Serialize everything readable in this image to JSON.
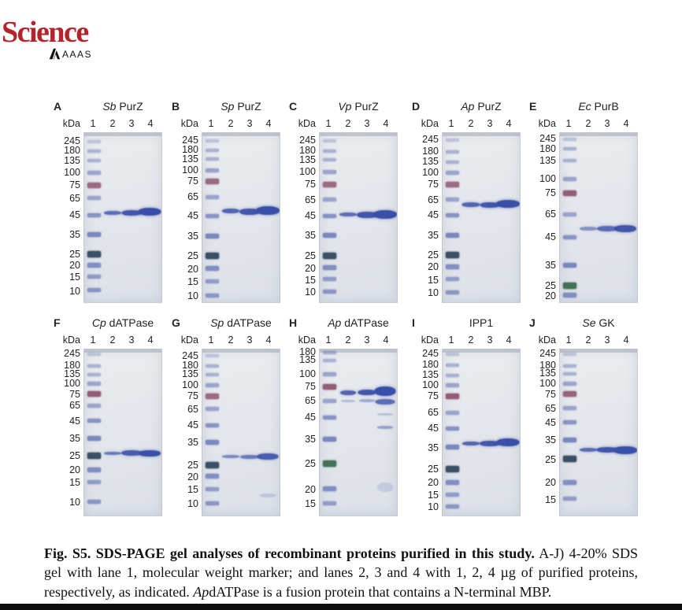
{
  "logo": {
    "title": "Science",
    "subtitle": "AAAS"
  },
  "kda_label": "kDa",
  "lane_numbers": [
    "1",
    "2",
    "3",
    "4"
  ],
  "caption": {
    "bold": "Fig. S5. SDS-PAGE gel analyses of recombinant proteins purified in this study.",
    "normal_1": " A-J) 4-20% SDS gel with lane 1, molecular weight marker; and lanes 2, 3 and 4 with 1, 2, 4 µg of purified proteins, respectively, as indicated. ",
    "italic": "Ap",
    "normal_2": "dATPase is a fusion protein that contains a N-terminal MBP."
  },
  "colors": {
    "science_red": "#b5232b",
    "gel_top": "#eaecef",
    "gel_bottom": "#dde1e8",
    "marker_blue": "#5e6fb2",
    "marker_maroon": "#8f5671",
    "marker_dark": "#33485e",
    "marker_green": "#3c6b52",
    "band_blue": "#3a4fa8",
    "text": "#1a1a1a"
  },
  "panels": [
    {
      "letter": "A",
      "title_italic": "Sb",
      "title": "PurZ",
      "row": 0,
      "col": 0,
      "ladder": [
        {
          "k": "245",
          "y": 5
        },
        {
          "k": "180",
          "y": 10.5
        },
        {
          "k": "135",
          "y": 16.5
        },
        {
          "k": "100",
          "y": 23.5
        },
        {
          "k": "75",
          "y": 31
        },
        {
          "k": "65",
          "y": 38.5
        },
        {
          "k": "45",
          "y": 48.5
        },
        {
          "k": "35",
          "y": 60
        },
        {
          "k": "25",
          "y": 71.5
        },
        {
          "k": "20",
          "y": 78
        },
        {
          "k": "15",
          "y": 85
        },
        {
          "k": "10",
          "y": 93
        }
      ],
      "bands": [
        {
          "lane": 2,
          "y": 47,
          "w": 22,
          "h": 5,
          "o": 0.8
        },
        {
          "lane": 3,
          "y": 47,
          "w": 25,
          "h": 7,
          "o": 0.95
        },
        {
          "lane": 4,
          "y": 46.5,
          "w": 29,
          "h": 10,
          "o": 1
        }
      ]
    },
    {
      "letter": "B",
      "title_italic": "Sp",
      "title": "PurZ",
      "row": 0,
      "col": 1,
      "ladder": [
        {
          "k": "245",
          "y": 4.5
        },
        {
          "k": "180",
          "y": 10
        },
        {
          "k": "135",
          "y": 15.5
        },
        {
          "k": "100",
          "y": 22
        },
        {
          "k": "75",
          "y": 28.5
        },
        {
          "k": "65",
          "y": 38
        },
        {
          "k": "45",
          "y": 49
        },
        {
          "k": "35",
          "y": 61
        },
        {
          "k": "25",
          "y": 72.5
        },
        {
          "k": "20",
          "y": 80
        },
        {
          "k": "15",
          "y": 87.5
        },
        {
          "k": "10",
          "y": 96
        }
      ],
      "bands": [
        {
          "lane": 2,
          "y": 46,
          "w": 22,
          "h": 6,
          "o": 0.85
        },
        {
          "lane": 3,
          "y": 46.5,
          "w": 26,
          "h": 8,
          "o": 0.95
        },
        {
          "lane": 4,
          "y": 46,
          "w": 30,
          "h": 11,
          "o": 1
        }
      ]
    },
    {
      "letter": "C",
      "title_italic": "Vp",
      "title": "PurZ",
      "row": 0,
      "col": 2,
      "ladder": [
        {
          "k": "245",
          "y": 4.5
        },
        {
          "k": "180",
          "y": 10.5
        },
        {
          "k": "135",
          "y": 16
        },
        {
          "k": "100",
          "y": 23
        },
        {
          "k": "75",
          "y": 30.5
        },
        {
          "k": "65",
          "y": 39.5
        },
        {
          "k": "45",
          "y": 49
        },
        {
          "k": "35",
          "y": 60.5
        },
        {
          "k": "25",
          "y": 72.5
        },
        {
          "k": "20",
          "y": 79.5
        },
        {
          "k": "15",
          "y": 86.5
        },
        {
          "k": "10",
          "y": 93.5
        }
      ],
      "bands": [
        {
          "lane": 2,
          "y": 48,
          "w": 22,
          "h": 5,
          "o": 0.8
        },
        {
          "lane": 3,
          "y": 48.5,
          "w": 26,
          "h": 8,
          "o": 0.95
        },
        {
          "lane": 4,
          "y": 48,
          "w": 30,
          "h": 11,
          "o": 1
        }
      ]
    },
    {
      "letter": "D",
      "title_italic": "Ap",
      "title": "PurZ",
      "row": 0,
      "col": 3,
      "ladder": [
        {
          "k": "245",
          "y": 4
        },
        {
          "k": "180",
          "y": 11
        },
        {
          "k": "135",
          "y": 17
        },
        {
          "k": "100",
          "y": 23.5
        },
        {
          "k": "75",
          "y": 30.5
        },
        {
          "k": "65",
          "y": 39.5
        },
        {
          "k": "45",
          "y": 48.5
        },
        {
          "k": "35",
          "y": 60.5
        },
        {
          "k": "25",
          "y": 72
        },
        {
          "k": "20",
          "y": 79
        },
        {
          "k": "15",
          "y": 86.5
        },
        {
          "k": "10",
          "y": 94
        }
      ],
      "bands": [
        {
          "lane": 2,
          "y": 42.5,
          "w": 23,
          "h": 6,
          "o": 0.85
        },
        {
          "lane": 3,
          "y": 42.5,
          "w": 25,
          "h": 7,
          "o": 0.95
        },
        {
          "lane": 4,
          "y": 42,
          "w": 30,
          "h": 10,
          "o": 1
        }
      ]
    },
    {
      "letter": "E",
      "title_italic": "Ec",
      "title": "PurB",
      "row": 0,
      "col": 4,
      "ladder": [
        {
          "k": "245",
          "y": 3.5
        },
        {
          "k": "180",
          "y": 9.5
        },
        {
          "k": "135",
          "y": 16.5
        },
        {
          "k": "100",
          "y": 27
        },
        {
          "k": "75",
          "y": 35.5,
          "o": 0.95
        },
        {
          "k": "65",
          "y": 48
        },
        {
          "k": "45",
          "y": 61.5
        },
        {
          "k": "35",
          "y": 78
        },
        {
          "k": "25",
          "y": 90,
          "s": "g"
        },
        {
          "k": "20",
          "y": 96
        }
      ],
      "bands": [
        {
          "lane": 2,
          "y": 56.5,
          "w": 22,
          "h": 5,
          "o": 0.55
        },
        {
          "lane": 3,
          "y": 56.5,
          "w": 26,
          "h": 7,
          "o": 0.8
        },
        {
          "lane": 4,
          "y": 56.5,
          "w": 28,
          "h": 9,
          "o": 0.95
        }
      ]
    },
    {
      "letter": "F",
      "title_italic": "Cp",
      "title": "dATPase",
      "row": 1,
      "col": 0,
      "ladder": [
        {
          "k": "245",
          "y": 3
        },
        {
          "k": "180",
          "y": 10
        },
        {
          "k": "135",
          "y": 15
        },
        {
          "k": "100",
          "y": 20.5
        },
        {
          "k": "75",
          "y": 27,
          "o": 0.95
        },
        {
          "k": "65",
          "y": 34
        },
        {
          "k": "45",
          "y": 43
        },
        {
          "k": "35",
          "y": 53.5
        },
        {
          "k": "25",
          "y": 64
        },
        {
          "k": "20",
          "y": 72.5
        },
        {
          "k": "15",
          "y": 80
        },
        {
          "k": "10",
          "y": 91.5
        }
      ],
      "bands": [
        {
          "lane": 2,
          "y": 62.5,
          "w": 22,
          "h": 4,
          "o": 0.7
        },
        {
          "lane": 3,
          "y": 62.5,
          "w": 26,
          "h": 7,
          "o": 0.9
        },
        {
          "lane": 4,
          "y": 62.5,
          "w": 28,
          "h": 8,
          "o": 1
        }
      ]
    },
    {
      "letter": "G",
      "title_italic": "Sp",
      "title": "dATPase",
      "row": 1,
      "col": 1,
      "ladder": [
        {
          "k": "245",
          "y": 4
        },
        {
          "k": "180",
          "y": 10
        },
        {
          "k": "135",
          "y": 15
        },
        {
          "k": "100",
          "y": 21.5
        },
        {
          "k": "75",
          "y": 28
        },
        {
          "k": "65",
          "y": 36
        },
        {
          "k": "45",
          "y": 45.5
        },
        {
          "k": "35",
          "y": 56
        },
        {
          "k": "25",
          "y": 69.5
        },
        {
          "k": "20",
          "y": 76.5
        },
        {
          "k": "15",
          "y": 84
        },
        {
          "k": "10",
          "y": 92.5
        }
      ],
      "bands": [
        {
          "lane": 2,
          "y": 64.5,
          "w": 22,
          "h": 4,
          "o": 0.6
        },
        {
          "lane": 3,
          "y": 64.5,
          "w": 24,
          "h": 5,
          "o": 0.7
        },
        {
          "lane": 4,
          "y": 64.5,
          "w": 27,
          "h": 8,
          "o": 0.9
        },
        {
          "lane": 4,
          "y": 88,
          "w": 20,
          "h": 5,
          "o": 0.18
        }
      ]
    },
    {
      "letter": "H",
      "title_italic": "Ap",
      "title": "dATPase",
      "row": 1,
      "col": 2,
      "ladder": [
        {
          "k": "180",
          "y": 2
        },
        {
          "k": "135",
          "y": 6.5
        },
        {
          "k": "100",
          "y": 15
        },
        {
          "k": "75",
          "y": 22.5,
          "o": 0.95
        },
        {
          "k": "65",
          "y": 31
        },
        {
          "k": "45",
          "y": 41
        },
        {
          "k": "35",
          "y": 54
        },
        {
          "k": "25",
          "y": 68.5,
          "s": "g"
        },
        {
          "k": "20",
          "y": 84
        },
        {
          "k": "15",
          "y": 92.5
        }
      ],
      "bands": [
        {
          "lane": 2,
          "y": 26,
          "w": 20,
          "h": 6,
          "o": 0.85
        },
        {
          "lane": 3,
          "y": 26,
          "w": 23,
          "h": 7,
          "o": 0.95
        },
        {
          "lane": 4,
          "y": 25,
          "w": 27,
          "h": 12,
          "o": 1
        },
        {
          "lane": 2,
          "y": 31,
          "w": 18,
          "h": 3,
          "o": 0.3
        },
        {
          "lane": 3,
          "y": 31,
          "w": 20,
          "h": 4,
          "o": 0.4
        },
        {
          "lane": 4,
          "y": 31.5,
          "w": 25,
          "h": 7,
          "o": 0.8
        },
        {
          "lane": 4,
          "y": 39,
          "w": 20,
          "h": 3,
          "o": 0.25
        },
        {
          "lane": 4,
          "y": 47,
          "w": 20,
          "h": 4,
          "o": 0.45
        },
        {
          "lane": 4,
          "y": 83,
          "w": 20,
          "h": 12,
          "o": 0.15
        }
      ]
    },
    {
      "letter": "I",
      "title_italic": "",
      "title": "IPP1",
      "row": 1,
      "col": 3,
      "ladder": [
        {
          "k": "245",
          "y": 3
        },
        {
          "k": "180",
          "y": 9.5
        },
        {
          "k": "135",
          "y": 15.5
        },
        {
          "k": "100",
          "y": 21.5
        },
        {
          "k": "75",
          "y": 28,
          "o": 0.95
        },
        {
          "k": "65",
          "y": 38
        },
        {
          "k": "45",
          "y": 47.5
        },
        {
          "k": "35",
          "y": 59
        },
        {
          "k": "25",
          "y": 72
        },
        {
          "k": "20",
          "y": 80
        },
        {
          "k": "15",
          "y": 87.5
        },
        {
          "k": "10",
          "y": 94.5
        }
      ],
      "bands": [
        {
          "lane": 2,
          "y": 56.5,
          "w": 22,
          "h": 5,
          "o": 0.85
        },
        {
          "lane": 3,
          "y": 56.5,
          "w": 26,
          "h": 7,
          "o": 0.95
        },
        {
          "lane": 4,
          "y": 56,
          "w": 29,
          "h": 10,
          "o": 1
        }
      ]
    },
    {
      "letter": "J",
      "title_italic": "Se",
      "title": "GK",
      "row": 1,
      "col": 4,
      "ladder": [
        {
          "k": "245",
          "y": 3
        },
        {
          "k": "180",
          "y": 10
        },
        {
          "k": "135",
          "y": 14.5
        },
        {
          "k": "100",
          "y": 20.5
        },
        {
          "k": "75",
          "y": 27,
          "o": 0.9
        },
        {
          "k": "65",
          "y": 35.5
        },
        {
          "k": "45",
          "y": 44
        },
        {
          "k": "35",
          "y": 54.5
        },
        {
          "k": "25",
          "y": 66
        },
        {
          "k": "20",
          "y": 80
        },
        {
          "k": "15",
          "y": 90
        }
      ],
      "bands": [
        {
          "lane": 2,
          "y": 60.5,
          "w": 22,
          "h": 5,
          "o": 0.8
        },
        {
          "lane": 3,
          "y": 60.5,
          "w": 27,
          "h": 7,
          "o": 0.95
        },
        {
          "lane": 4,
          "y": 60.5,
          "w": 30,
          "h": 10,
          "o": 1
        }
      ]
    }
  ]
}
